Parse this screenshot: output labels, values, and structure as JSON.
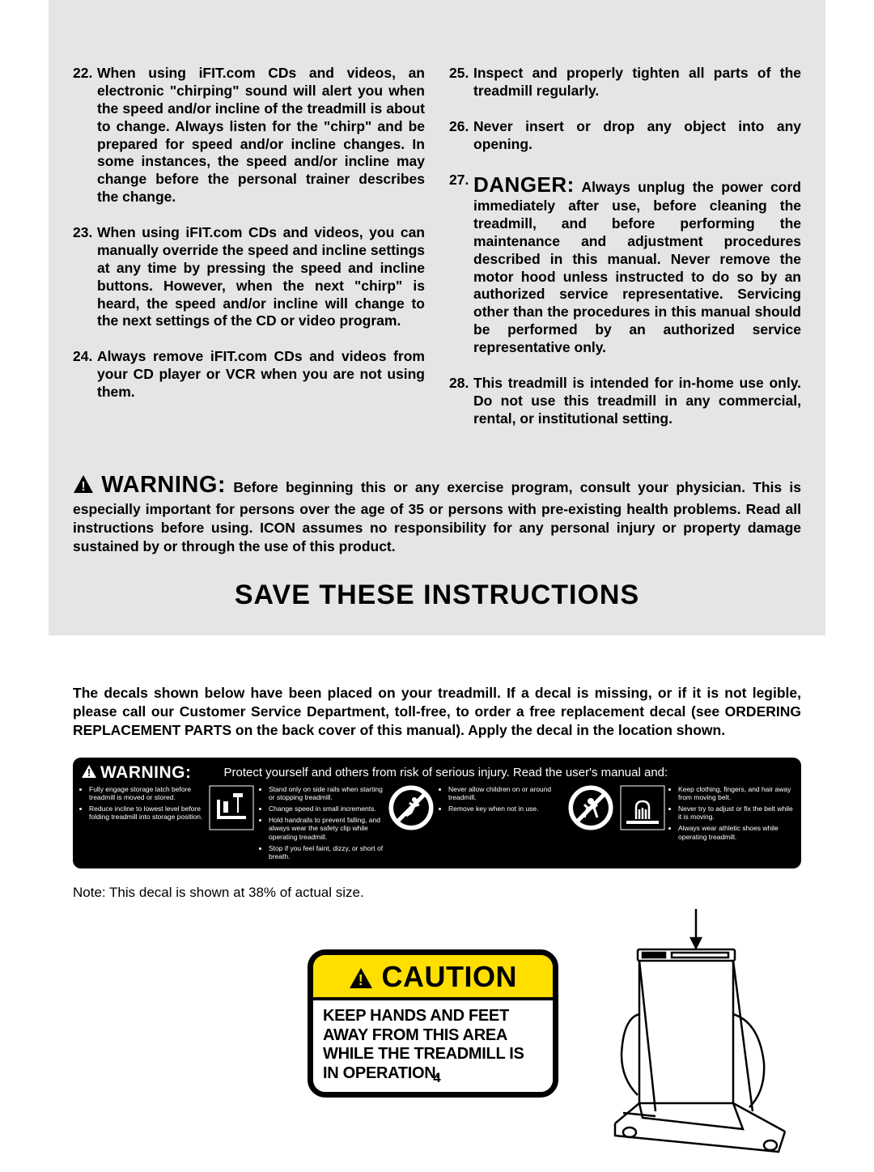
{
  "page_number": "4",
  "colors": {
    "gray_bg": "#e5e5e5",
    "black": "#000000",
    "white": "#ffffff",
    "yellow": "#ffdf00"
  },
  "left_items": [
    {
      "n": "22.",
      "t": "When using iFIT.com CDs and videos, an electronic \"chirping\" sound will alert you when the speed and/or incline of the treadmill is about to change. Always listen for the \"chirp\" and be prepared for speed and/or incline changes. In some instances, the speed and/or incline may change before the personal trainer describes the change."
    },
    {
      "n": "23.",
      "t": "When using iFIT.com CDs and videos, you can manually override the speed and incline settings at any time by pressing the speed and incline buttons. However, when the next \"chirp\" is heard, the speed and/or incline will change to the next settings of the CD or video program."
    },
    {
      "n": "24.",
      "t": "Always remove iFIT.com CDs and videos from your CD player or VCR when you are not using them."
    }
  ],
  "right_items": [
    {
      "n": "25.",
      "t": "Inspect and properly tighten all parts of the treadmill regularly."
    },
    {
      "n": "26.",
      "t": "Never insert or drop any object into any opening."
    },
    {
      "n": "27.",
      "danger": "DANGER:",
      "t": " Always unplug the power cord immediately after use, before cleaning the treadmill, and before performing the maintenance and adjustment procedures described in this manual. Never remove the motor hood unless instructed to do so by an authorized service representative. Servicing other than the procedures in this manual should be performed by an authorized service representative only."
    },
    {
      "n": "28.",
      "t": "This treadmill is intended for in-home use only. Do not use this treadmill in any commercial, rental, or institutional setting."
    }
  ],
  "warning_word": "WARNING:",
  "warning_text": " Before beginning this or any exercise program, consult your physician. This is especially important for persons over the age of 35 or persons with pre-existing health problems. Read all instructions before using. ICON assumes no responsibility for any personal injury or property damage sustained by or through the use of this product.",
  "save_heading": "SAVE THESE INSTRUCTIONS",
  "decal_intro": "The decals shown below have been placed on your treadmill. If a decal is missing, or if it is not legible, please call our Customer Service Department, toll-free, to order a free replacement decal (see ORDERING REPLACEMENT PARTS on the back cover of this manual). Apply the decal in the location shown.",
  "banner": {
    "warning": "WARNING:",
    "subtitle": "Protect yourself and others from risk of serious injury.  Read the user's manual and:",
    "col1": [
      "Fully engage storage latch before treadmill is moved or stored.",
      "Reduce incline to lowest level before folding treadmill into storage position."
    ],
    "col2": [
      "Stand only on side rails when starting or stopping treadmill.",
      "Change speed in small increments.",
      "Hold handrails to prevent falling, and always wear the safety clip while operating treadmill.",
      "Stop if you feel faint, dizzy, or short of breath."
    ],
    "col3": [
      "Never allow children on or around treadmill.",
      "Remove key when not in use."
    ],
    "col4": [
      "Keep clothing, fingers, and hair away from moving belt.",
      "Never try to adjust or fix the belt while it is moving.",
      "Always wear athletic shoes while operating treadmill."
    ]
  },
  "decal_note": "Note: This decal is shown at 38% of actual size.",
  "caution": {
    "title": "CAUTION",
    "body": "KEEP HANDS AND FEET AWAY FROM THIS AREA WHILE THE TREADMILL IS IN OPERATION."
  }
}
